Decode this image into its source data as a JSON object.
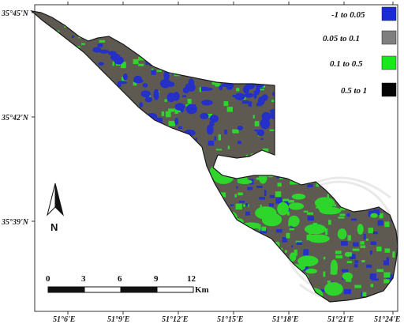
{
  "latitude_labels": [
    "35°45'N",
    "35°42'N",
    "35°39'N"
  ],
  "longitude_labels": [
    "51°6'E",
    "51°9'E",
    "51°12'E",
    "51°15'E",
    "51°18'E",
    "51°21'E",
    "51°24'E"
  ],
  "legend": [
    {
      "label": "-1  to  0.05",
      "color": "#1a2bd6"
    },
    {
      "label": "0.05  to  0.1",
      "color": "#7f7f7f"
    },
    {
      "label": "0.1  to  0.5",
      "color": "#19e81c"
    },
    {
      "label": "0.5  to  1",
      "color": "#050505"
    }
  ],
  "map_classes": {
    "base_color": "#5e5a52",
    "green_color": "#2ed62c",
    "blue_color": "#2430c8",
    "outline_color": "#1a1a1a"
  },
  "north_arrow": {
    "letter": "N"
  },
  "scale_bar": {
    "ticks": [
      "0",
      "3",
      "6",
      "9",
      "12"
    ],
    "unit": "Km"
  }
}
